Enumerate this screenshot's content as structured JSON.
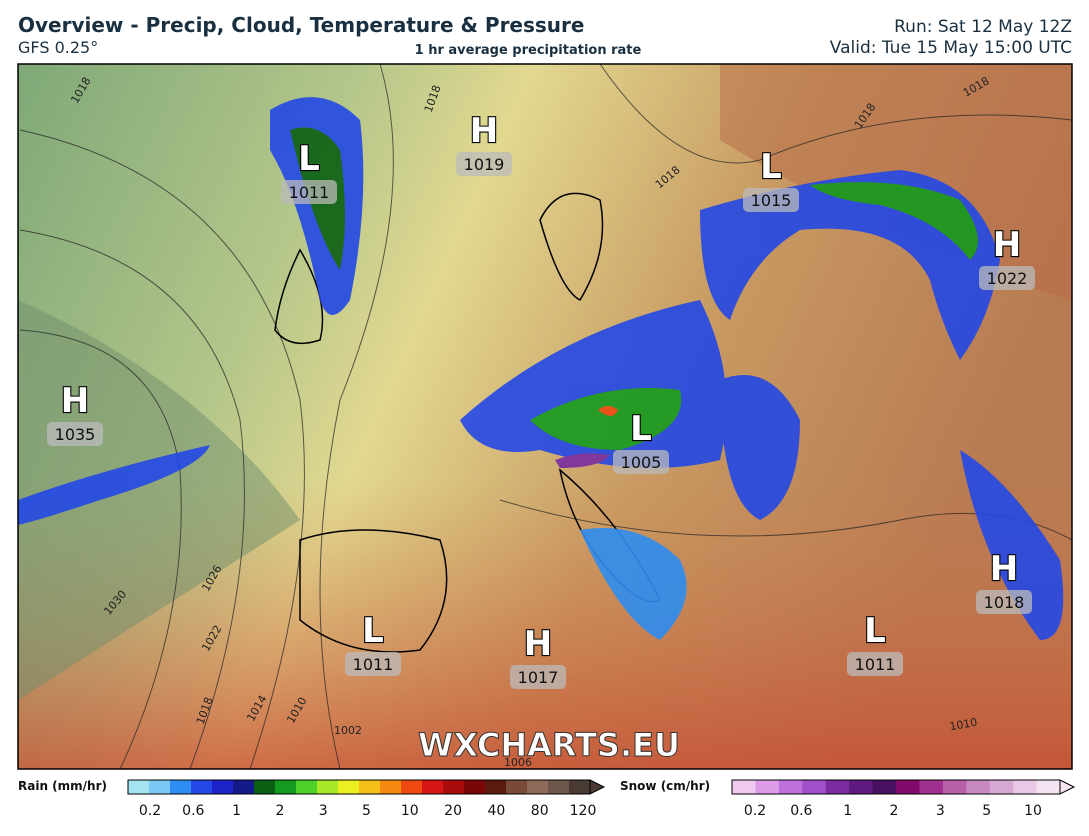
{
  "header": {
    "title": "Overview - Precip, Cloud, Temperature & Pressure",
    "model": "GFS 0.25°",
    "subtitle": "1 hr average precipitation rate",
    "run": "Run: Sat 12 May 12Z",
    "valid": "Valid: Tue 15 May 15:00 UTC"
  },
  "map": {
    "watermark": "WXCHARTS.EU",
    "pressure_centers": [
      {
        "type": "H",
        "value": 1019
      },
      {
        "type": "L",
        "value": 1011
      },
      {
        "type": "L",
        "value": 1015
      },
      {
        "type": "H",
        "value": 1022
      },
      {
        "type": "H",
        "value": 1035
      },
      {
        "type": "L",
        "value": 1005
      },
      {
        "type": "H",
        "value": 1018
      },
      {
        "type": "L",
        "value": 1011
      },
      {
        "type": "H",
        "value": 1017
      },
      {
        "type": "L",
        "value": 1011
      }
    ],
    "isobar_labels": [
      1018,
      1018,
      1018,
      1018,
      1018,
      1026,
      1030,
      1022,
      1018,
      1014,
      1010,
      1002,
      1006,
      1010
    ]
  },
  "legend": {
    "rain": {
      "label": "Rain (mm/hr)",
      "ticks": [
        0.2,
        0.6,
        1,
        2,
        3,
        5,
        10,
        20,
        40,
        80,
        120
      ],
      "colors": [
        "#a6e3f0",
        "#7cc8f5",
        "#2e8df0",
        "#2348e6",
        "#1b22c8",
        "#141a8a",
        "#0a5f12",
        "#149a1e",
        "#4ed02a",
        "#a8e828",
        "#ecf020",
        "#f4c018",
        "#f48a10",
        "#ee4a12",
        "#d61616",
        "#aa0c0c",
        "#7a0606",
        "#5a1a10",
        "#7a4a38",
        "#8e6a58",
        "#6e564a",
        "#4a3a34"
      ]
    },
    "snow": {
      "label": "Snow (cm/hr)",
      "ticks": [
        0.2,
        0.6,
        1,
        2,
        3,
        5,
        10
      ],
      "colors": [
        "#f0c8f0",
        "#dc9ce8",
        "#c070dc",
        "#a050c8",
        "#7a2ca0",
        "#5e1a80",
        "#4a1060",
        "#820a6a",
        "#a03090",
        "#b860a8",
        "#c888c0",
        "#d8a8d4",
        "#e8c8e4",
        "#f4e4f2"
      ]
    }
  }
}
